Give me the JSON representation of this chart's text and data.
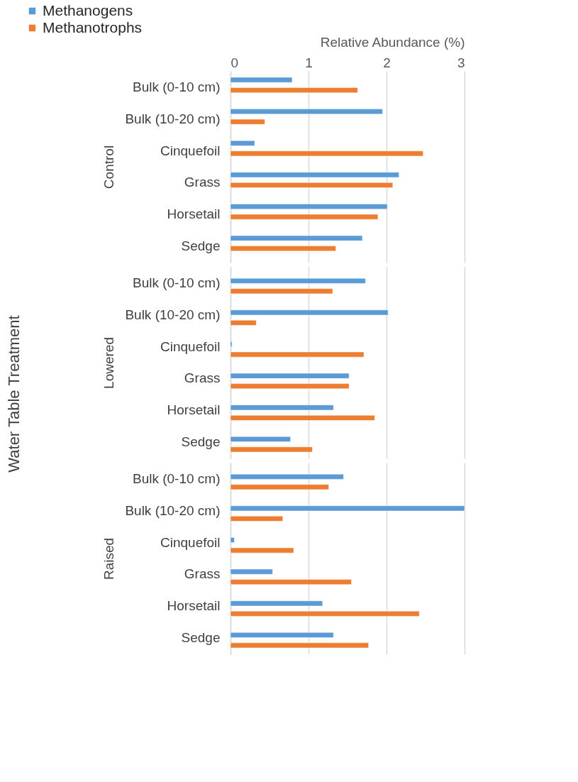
{
  "chart_data": [
    {
      "type": "bar",
      "orientation": "horizontal",
      "xlabel": "Relative Abundance (%)",
      "ylabel": "Control",
      "annotations": [
        "Water Table Treatment"
      ],
      "legend": "top left",
      "grid": "x",
      "xlim": [
        0,
        3
      ],
      "xticks": [
        0,
        1,
        2,
        3
      ],
      "categories": [
        "Bulk (0-10 cm)",
        "Bulk (10-20 cm)",
        "Cinquefoil",
        "Grass",
        "Horsetail",
        "Sedge"
      ],
      "series": [
        {
          "name": "Methanogens",
          "color": "#5b9bd5",
          "values": [
            0.79,
            1.95,
            0.31,
            2.16,
            2.01,
            1.69
          ]
        },
        {
          "name": "Methanotrophs",
          "color": "#ed7d31",
          "values": [
            1.63,
            0.44,
            2.47,
            2.08,
            1.89,
            1.35
          ]
        }
      ]
    },
    {
      "type": "bar",
      "orientation": "horizontal",
      "ylabel": "Lowered",
      "grid": "x",
      "xlim": [
        0,
        3
      ],
      "xticks": [
        0,
        1,
        2,
        3
      ],
      "tick_labels": "y",
      "categories": [
        "Bulk (0-10 cm)",
        "Bulk (10-20 cm)",
        "Cinquefoil",
        "Grass",
        "Horsetail",
        "Sedge"
      ],
      "series": [
        {
          "color": "#5b9bd5",
          "values": [
            1.73,
            2.02,
            0.02,
            1.52,
            1.32,
            0.77
          ]
        },
        {
          "color": "#ed7d31",
          "values": [
            1.31,
            0.33,
            1.71,
            1.52,
            1.85,
            1.05
          ]
        }
      ]
    },
    {
      "type": "bar",
      "orientation": "horizontal",
      "ylabel": "Raised",
      "grid": "x",
      "xlim": [
        0,
        3
      ],
      "xticks": [
        0,
        1,
        2,
        3
      ],
      "tick_labels": "y",
      "categories": [
        "Bulk (0-10 cm)",
        "Bulk (10-20 cm)",
        "Cinquefoil",
        "Grass",
        "Horsetail",
        "Sedge"
      ],
      "series": [
        {
          "color": "#5b9bd5",
          "values": [
            1.45,
            3.0,
            0.05,
            0.54,
            1.18,
            1.32
          ]
        },
        {
          "color": "#ed7d31",
          "values": [
            1.26,
            0.67,
            0.81,
            1.55,
            2.42,
            1.77
          ]
        }
      ]
    }
  ]
}
